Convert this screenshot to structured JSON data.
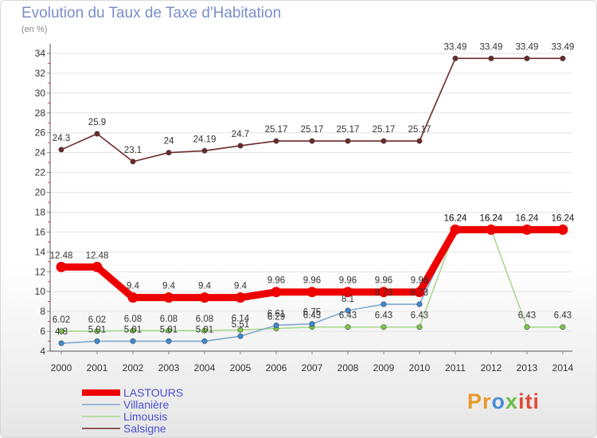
{
  "header": {
    "title": "Evolution du Taux de Taxe d'Habitation",
    "unit": "(en %)"
  },
  "logo": {
    "text": "Proxiti",
    "parts": [
      "Pr",
      "o",
      "x",
      "iti"
    ]
  },
  "chart_data": {
    "type": "line",
    "title": "Evolution du Taux de Taxe d'Habitation",
    "ylabel": "(en %)",
    "xlabel": "",
    "ylim": [
      4,
      34
    ],
    "yticks": [
      "4",
      "6",
      "8",
      "10",
      "12",
      "14",
      "16",
      "18",
      "20",
      "22",
      "24",
      "26",
      "28",
      "30",
      "32",
      "34"
    ],
    "categories": [
      "2000",
      "2001",
      "2002",
      "2003",
      "2004",
      "2005",
      "2006",
      "2007",
      "2008",
      "2009",
      "2010",
      "2011",
      "2012",
      "2013",
      "2014"
    ],
    "legend_position": "bottom-left",
    "series": [
      {
        "name": "Salsigne",
        "color": "#6b2a2a",
        "marker": "#6b2a2a",
        "values": [
          24.3,
          25.9,
          23.1,
          24,
          24.19,
          24.7,
          25.17,
          25.17,
          25.17,
          25.17,
          25.17,
          33.49,
          33.49,
          33.49,
          33.49
        ],
        "labels": [
          "24.3",
          "25.9",
          "23.1",
          "24",
          "24.19",
          "24.7",
          "25.17",
          "25.17",
          "25.17",
          "25.17",
          "25.17",
          "33.49",
          "33.49",
          "33.49",
          "33.49"
        ]
      },
      {
        "name": "Limousis",
        "color": "#a8d890",
        "marker": "#7cc44a",
        "values": [
          6.02,
          6.02,
          6.08,
          6.08,
          6.08,
          6.14,
          6.29,
          6.43,
          6.43,
          6.43,
          6.43,
          16.24,
          16.24,
          6.43,
          6.43
        ],
        "labels": [
          "6.02",
          "6.02",
          "6.08",
          "6.08",
          "6.08",
          "6.14",
          "6.29",
          "6.43",
          "6.43",
          "6.43",
          "6.43",
          "16.24",
          "16.24",
          "6.43",
          "6.43"
        ]
      },
      {
        "name": "Villanière",
        "color": "#7fa8d0",
        "marker": "#3a8ad8",
        "values": [
          4.8,
          5.01,
          5.01,
          5.01,
          5.01,
          5.51,
          6.61,
          6.75,
          8.1,
          8.73,
          8.73,
          16.24,
          16.24,
          16.24,
          16.24
        ],
        "labels": [
          "4.8",
          "5.01",
          "5.01",
          "5.01",
          "5.01",
          "5.51",
          "6.61",
          "6.75",
          "8.1",
          "8.73",
          "8.73",
          "16.24",
          "16.24",
          "16.24",
          "16.24"
        ]
      },
      {
        "name": "LASTOURS",
        "color": "#ee0000",
        "marker": "#ee0000",
        "values": [
          12.48,
          12.48,
          9.4,
          9.4,
          9.4,
          9.4,
          9.96,
          9.96,
          9.96,
          9.96,
          9.96,
          16.24,
          16.24,
          16.24,
          16.24
        ],
        "labels": [
          "12.48",
          "12.48",
          "9.4",
          "9.4",
          "9.4",
          "9.4",
          "9.96",
          "9.96",
          "9.96",
          "9.96",
          "9.96",
          "16.24",
          "16.24",
          "16.24",
          "16.24"
        ]
      }
    ],
    "legend_order": [
      "LASTOURS",
      "Villanière",
      "Limousis",
      "Salsigne"
    ]
  }
}
